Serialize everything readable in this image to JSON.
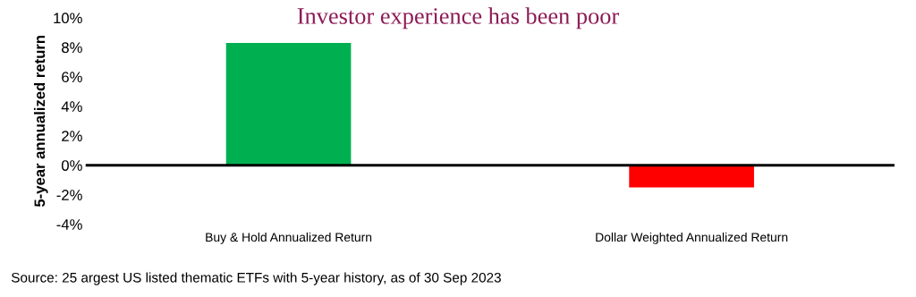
{
  "chart_data": {
    "type": "bar",
    "title": "Investor experience has been poor",
    "ylabel": "5-year annualized return",
    "categories": [
      "Buy & Hold Annualized Return",
      "Dollar Weighted Annualized Return"
    ],
    "values": [
      8.3,
      -1.5
    ],
    "colors": [
      "#00b050",
      "#ff0000"
    ],
    "ylim": [
      -4,
      10
    ],
    "yticks": [
      {
        "value": -4,
        "label": "-4%"
      },
      {
        "value": -2,
        "label": "-2%"
      },
      {
        "value": 0,
        "label": "0%"
      },
      {
        "value": 2,
        "label": "2%"
      },
      {
        "value": 4,
        "label": "4%"
      },
      {
        "value": 6,
        "label": "6%"
      },
      {
        "value": 8,
        "label": "8%"
      },
      {
        "value": 10,
        "label": "10%"
      }
    ],
    "legend": false,
    "annotations": [
      "Source: 25 argest US listed thematic ETFs with 5-year history, as of 30 Sep 2023"
    ]
  }
}
